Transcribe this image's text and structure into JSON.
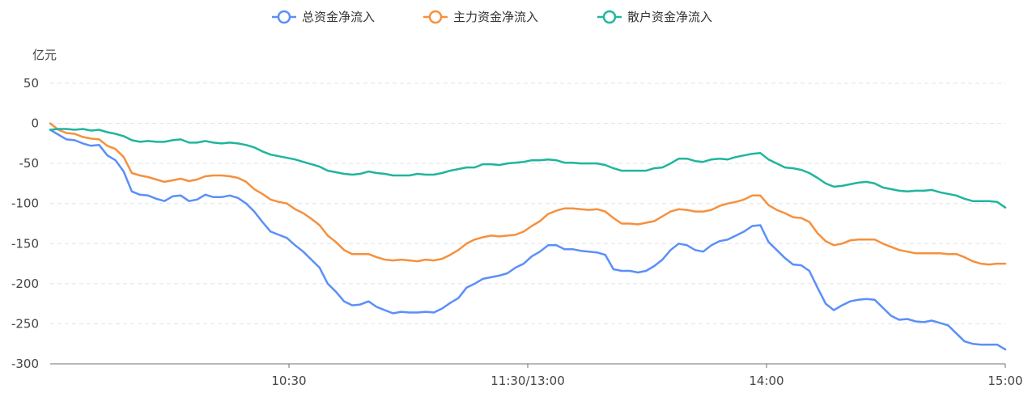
{
  "chart_data": {
    "type": "line",
    "ylabel": "亿元",
    "ylim": [
      -300,
      50
    ],
    "yticks": [
      50,
      0,
      -50,
      -100,
      -150,
      -200,
      -250,
      -300
    ],
    "x_range": [
      "09:30",
      "15:00"
    ],
    "xticks": [
      "10:30",
      "11:30/13:00",
      "14:00",
      "15:00"
    ],
    "grid": true,
    "legend_position": "top-center",
    "sample_interval_minutes": 2,
    "series": [
      {
        "name": "总资金净流入",
        "color": "#5B8FF9",
        "values": [
          -8,
          -14,
          -20,
          -21,
          -25,
          -28,
          -27,
          -40,
          -46,
          -60,
          -85,
          -89,
          -90,
          -94,
          -97,
          -91,
          -90,
          -97,
          -95,
          -89,
          -92,
          -92,
          -90,
          -93,
          -100,
          -110,
          -123,
          -135,
          -139,
          -143,
          -152,
          -160,
          -170,
          -180,
          -200,
          -210,
          -222,
          -227,
          -226,
          -222,
          -229,
          -233,
          -237,
          -235,
          -236,
          -236,
          -235,
          -236,
          -231,
          -224,
          -218,
          -205,
          -200,
          -194,
          -192,
          -190,
          -187,
          -180,
          -175,
          -166,
          -160,
          -152,
          -152,
          -157,
          -157,
          -159,
          -160,
          -161,
          -164,
          -182,
          -184,
          -184,
          -186,
          -184,
          -178,
          -170,
          -158,
          -150,
          -152,
          -158,
          -160,
          -152,
          -147,
          -145,
          -140,
          -135,
          -128,
          -127,
          -148,
          -158,
          -168,
          -176,
          -177,
          -184,
          -205,
          -225,
          -233,
          -227,
          -222,
          -220,
          -219,
          -220,
          -230,
          -240,
          -245,
          -244,
          -247,
          -248,
          -246,
          -249,
          -252,
          -262,
          -272,
          -275,
          -276,
          -276,
          -276,
          -282
        ]
      },
      {
        "name": "主力资金净流入",
        "color": "#F6903D",
        "values": [
          0,
          -8,
          -12,
          -13,
          -17,
          -19,
          -20,
          -28,
          -32,
          -42,
          -62,
          -65,
          -67,
          -70,
          -73,
          -71,
          -69,
          -72,
          -70,
          -66,
          -65,
          -65,
          -66,
          -68,
          -73,
          -82,
          -88,
          -95,
          -98,
          -100,
          -107,
          -112,
          -119,
          -127,
          -140,
          -148,
          -158,
          -163,
          -163,
          -163,
          -167,
          -170,
          -171,
          -170,
          -171,
          -172,
          -170,
          -171,
          -169,
          -164,
          -158,
          -150,
          -145,
          -142,
          -140,
          -141,
          -140,
          -139,
          -135,
          -128,
          -122,
          -113,
          -109,
          -106,
          -106,
          -107,
          -108,
          -107,
          -110,
          -118,
          -125,
          -125,
          -126,
          -124,
          -122,
          -116,
          -110,
          -107,
          -108,
          -110,
          -110,
          -108,
          -103,
          -100,
          -98,
          -95,
          -90,
          -90,
          -102,
          -108,
          -112,
          -117,
          -118,
          -123,
          -137,
          -147,
          -152,
          -150,
          -146,
          -145,
          -145,
          -145,
          -150,
          -154,
          -158,
          -160,
          -162,
          -162,
          -162,
          -162,
          -163,
          -163,
          -167,
          -172,
          -175,
          -176,
          -175,
          -175
        ]
      },
      {
        "name": "散户资金净流入",
        "color": "#1FB59D",
        "values": [
          -8,
          -7,
          -7,
          -8,
          -7,
          -9,
          -8,
          -11,
          -13,
          -16,
          -21,
          -23,
          -22,
          -23,
          -23,
          -21,
          -20,
          -24,
          -24,
          -22,
          -24,
          -25,
          -24,
          -25,
          -27,
          -30,
          -35,
          -39,
          -41,
          -43,
          -45,
          -48,
          -51,
          -54,
          -59,
          -61,
          -63,
          -64,
          -63,
          -60,
          -62,
          -63,
          -65,
          -65,
          -65,
          -63,
          -64,
          -64,
          -62,
          -59,
          -57,
          -55,
          -55,
          -51,
          -51,
          -52,
          -50,
          -49,
          -48,
          -46,
          -46,
          -45,
          -46,
          -49,
          -49,
          -50,
          -50,
          -50,
          -52,
          -56,
          -59,
          -59,
          -59,
          -59,
          -56,
          -55,
          -50,
          -44,
          -44,
          -47,
          -48,
          -45,
          -44,
          -45,
          -42,
          -40,
          -38,
          -37,
          -45,
          -50,
          -55,
          -56,
          -58,
          -62,
          -68,
          -75,
          -79,
          -78,
          -76,
          -74,
          -73,
          -75,
          -80,
          -82,
          -84,
          -85,
          -84,
          -84,
          -83,
          -86,
          -88,
          -90,
          -94,
          -97,
          -97,
          -97,
          -98,
          -105
        ]
      }
    ]
  }
}
